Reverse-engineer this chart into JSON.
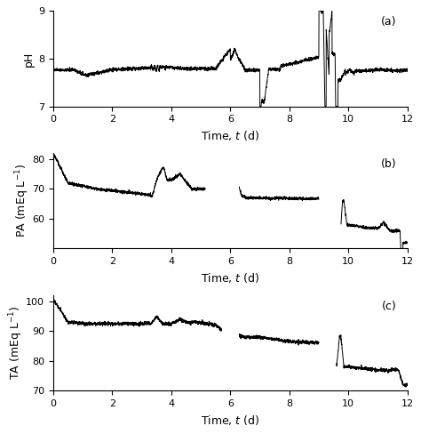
{
  "title_a": "(a)",
  "title_b": "(b)",
  "title_c": "(c)",
  "ylabel_a": "pH",
  "ylabel_b": "PA (mEq L$^{-1}$)",
  "ylabel_c": "TA (mEq L$^{-1}$)",
  "xlabel": "Time, $t$ (d)",
  "xlim": [
    0,
    12
  ],
  "ylim_a": [
    7,
    9
  ],
  "ylim_b": [
    50,
    82
  ],
  "ylim_c": [
    70,
    102
  ],
  "yticks_a": [
    7,
    8,
    9
  ],
  "yticks_b": [
    60,
    70,
    80
  ],
  "yticks_c": [
    70,
    80,
    90,
    100
  ],
  "xticks": [
    0,
    2,
    4,
    6,
    8,
    10,
    12
  ],
  "line_color": "#000000",
  "line_width": 0.7,
  "bg_color": "#ffffff",
  "fig_bg": "#ffffff"
}
